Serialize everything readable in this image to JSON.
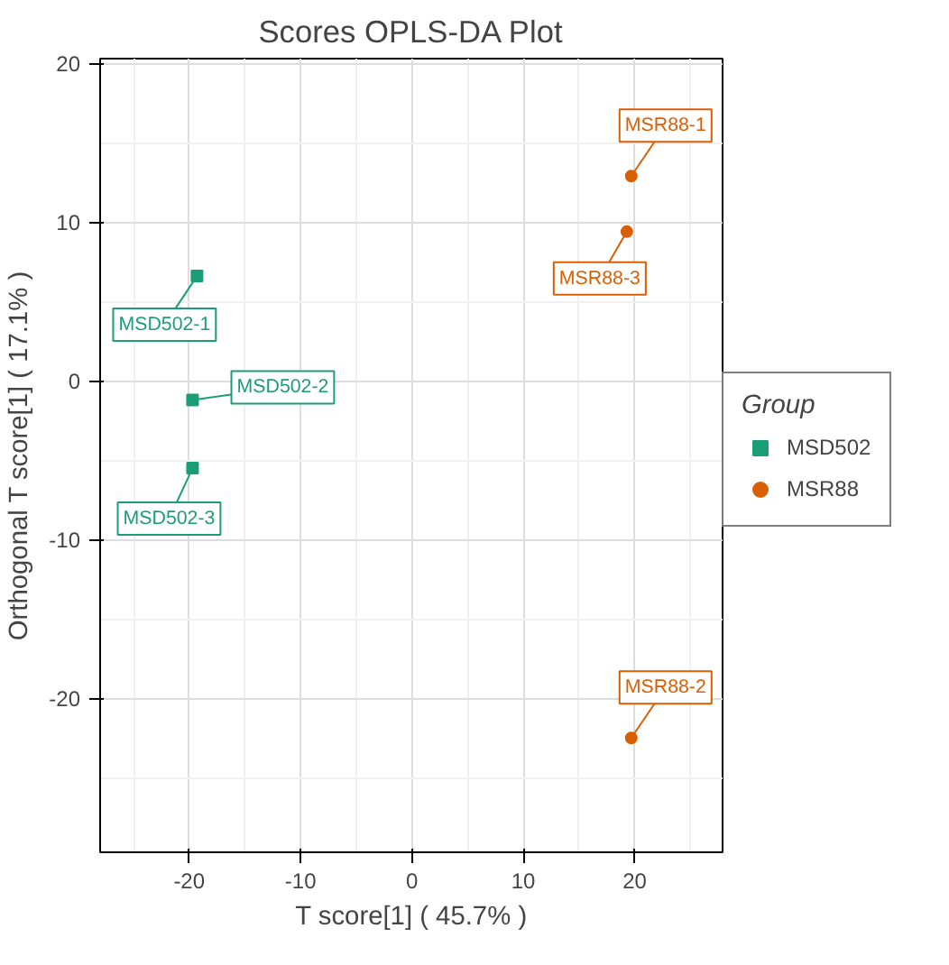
{
  "chart_data": {
    "type": "scatter",
    "title": "Scores OPLS-DA Plot",
    "xlabel": "T score[1] ( 45.7% )",
    "ylabel": "Orthogonal T score[1] ( 17.1% )",
    "legend_title": "Group",
    "series": [
      {
        "name": "MSD502",
        "color": "#1b9e77",
        "marker": "square",
        "x": [
          -19.3,
          -19.7,
          -19.7
        ],
        "values": [
          6.6,
          -1.2,
          -5.5
        ]
      },
      {
        "name": "MSR88",
        "color": "#d95f02",
        "marker": "circle",
        "x": [
          19.7,
          19.3,
          19.7
        ],
        "values": [
          12.9,
          9.4,
          -22.5
        ]
      }
    ],
    "annotations": [
      {
        "text": "MSD502-1",
        "x": -19.3,
        "y": 6.6
      },
      {
        "text": "MSD502-2",
        "x": -19.7,
        "y": -1.2
      },
      {
        "text": "MSD502-3",
        "x": -19.7,
        "y": -5.5
      },
      {
        "text": "MSR88-1",
        "x": 19.7,
        "y": 12.9
      },
      {
        "text": "MSR88-3",
        "x": 19.3,
        "y": 9.4
      },
      {
        "text": "MSR88-2",
        "x": 19.7,
        "y": -22.5
      }
    ],
    "xlim": [
      -28,
      27.9
    ],
    "ylim": [
      -29.7,
      20.3
    ],
    "xticks": [
      -20,
      -10,
      0,
      10,
      20
    ],
    "yticks": [
      -20,
      -10,
      0,
      10,
      20
    ],
    "grid": true,
    "legend": "right"
  }
}
